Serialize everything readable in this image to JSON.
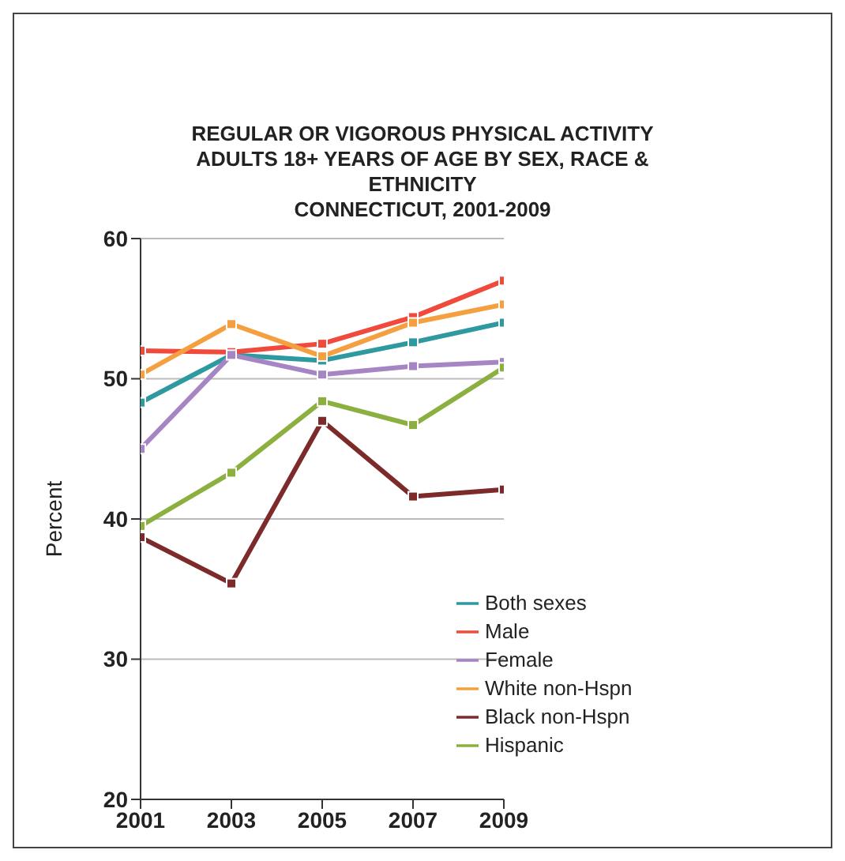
{
  "chart_data": {
    "type": "line",
    "title": "REGULAR OR VIGOROUS PHYSICAL ACTIVITY\nADULTS 18+ YEARS OF AGE BY SEX, RACE &\nETHNICITY\nCONNECTICUT, 2001-2009",
    "ylabel": "Percent",
    "x": [
      2001,
      2003,
      2005,
      2007,
      2009
    ],
    "xlim": [
      2001,
      2009
    ],
    "xticks": [
      2001,
      2003,
      2005,
      2007,
      2009
    ],
    "ylim": [
      20,
      60
    ],
    "yticks": [
      20,
      30,
      40,
      50,
      60
    ],
    "grid": "y",
    "legend": "bottom right",
    "marker": "square",
    "series": [
      {
        "name": "Both sexes",
        "color": "#2e9aa0",
        "values": [
          48.3,
          51.7,
          51.3,
          52.6,
          54.0
        ]
      },
      {
        "name": "Male",
        "color": "#f04a3c",
        "values": [
          52.0,
          51.9,
          52.5,
          54.4,
          57.0
        ]
      },
      {
        "name": "Female",
        "color": "#a585c4",
        "values": [
          45.0,
          51.7,
          50.3,
          50.9,
          51.2
        ]
      },
      {
        "name": "White non-Hspn",
        "color": "#f5a040",
        "values": [
          50.3,
          53.9,
          51.6,
          54.0,
          55.3
        ]
      },
      {
        "name": "Black non-Hspn",
        "color": "#7d2a2a",
        "values": [
          38.7,
          35.4,
          47.0,
          41.6,
          42.1
        ]
      },
      {
        "name": "Hispanic",
        "color": "#8cb040",
        "values": [
          39.5,
          43.3,
          48.4,
          46.7,
          50.8
        ]
      }
    ]
  }
}
